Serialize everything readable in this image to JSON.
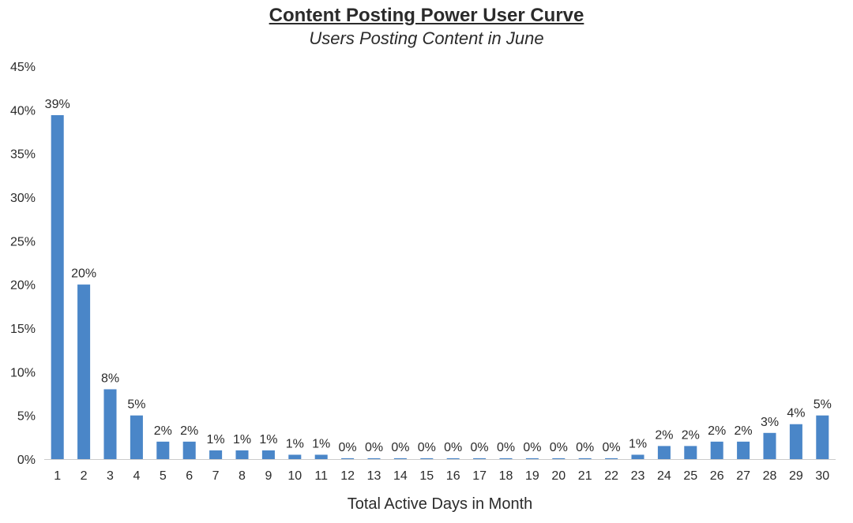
{
  "chart_data": {
    "type": "bar",
    "title": "Content Posting Power User Curve",
    "subtitle": "Users Posting Content in June",
    "xlabel": "Total Active Days in Month",
    "ylabel": "",
    "ylim": [
      0,
      45
    ],
    "y_ticks": [
      "0%",
      "5%",
      "10%",
      "15%",
      "20%",
      "25%",
      "30%",
      "35%",
      "40%",
      "45%"
    ],
    "y_tick_values": [
      0,
      5,
      10,
      15,
      20,
      25,
      30,
      35,
      40,
      45
    ],
    "grid": false,
    "bar_color": "#4a86c8",
    "categories": [
      "1",
      "2",
      "3",
      "4",
      "5",
      "6",
      "7",
      "8",
      "9",
      "10",
      "11",
      "12",
      "13",
      "14",
      "15",
      "16",
      "17",
      "18",
      "19",
      "20",
      "21",
      "22",
      "23",
      "24",
      "25",
      "26",
      "27",
      "28",
      "29",
      "30"
    ],
    "values": [
      39.4,
      20.0,
      8.0,
      5.0,
      2.0,
      2.0,
      1.0,
      1.0,
      1.0,
      0.5,
      0.5,
      0.1,
      0.1,
      0.1,
      0.1,
      0.1,
      0.1,
      0.1,
      0.1,
      0.1,
      0.1,
      0.1,
      0.5,
      1.5,
      1.5,
      2.0,
      2.0,
      3.0,
      4.0,
      5.0
    ],
    "data_labels": [
      "39%",
      "20%",
      "8%",
      "5%",
      "2%",
      "2%",
      "1%",
      "1%",
      "1%",
      "1%",
      "1%",
      "0%",
      "0%",
      "0%",
      "0%",
      "0%",
      "0%",
      "0%",
      "0%",
      "0%",
      "0%",
      "0%",
      "1%",
      "2%",
      "2%",
      "2%",
      "2%",
      "3%",
      "4%",
      "5%"
    ]
  }
}
